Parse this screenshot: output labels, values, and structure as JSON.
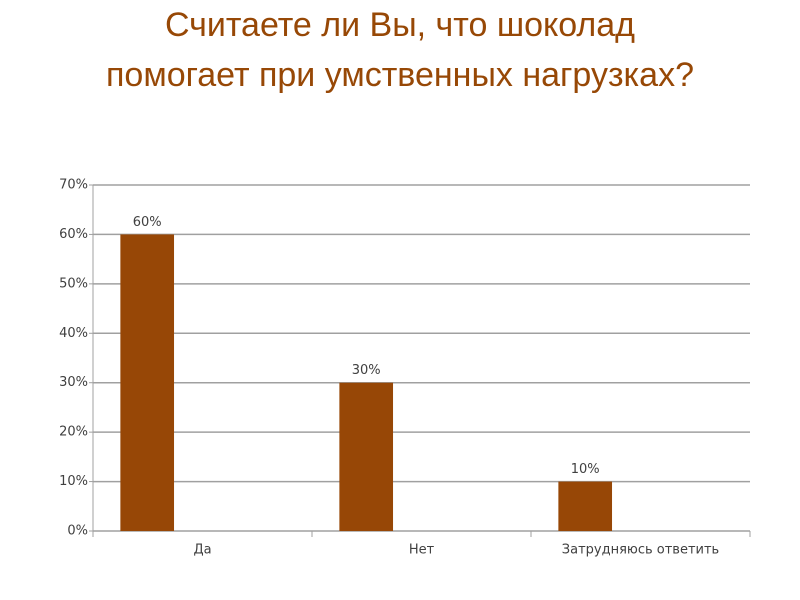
{
  "chart_data": {
    "type": "bar",
    "title": "Считаете ли Вы, что шоколад помогает при умственных нагрузках?",
    "categories": [
      "Да",
      "Нет",
      "Затрудняюсь ответить"
    ],
    "values": [
      60,
      30,
      10
    ],
    "value_labels": [
      "60%",
      "30%",
      "10%"
    ],
    "color": "#974706",
    "ylim": [
      0,
      70
    ],
    "yticks": [
      {
        "value": 0,
        "label": "0%"
      },
      {
        "value": 10,
        "label": "10%"
      },
      {
        "value": 20,
        "label": "20%"
      },
      {
        "value": 30,
        "label": "30%"
      },
      {
        "value": 40,
        "label": "40%"
      },
      {
        "value": 50,
        "label": "50%"
      },
      {
        "value": 60,
        "label": "60%"
      },
      {
        "value": 70,
        "label": "70%"
      }
    ],
    "grid": true
  }
}
